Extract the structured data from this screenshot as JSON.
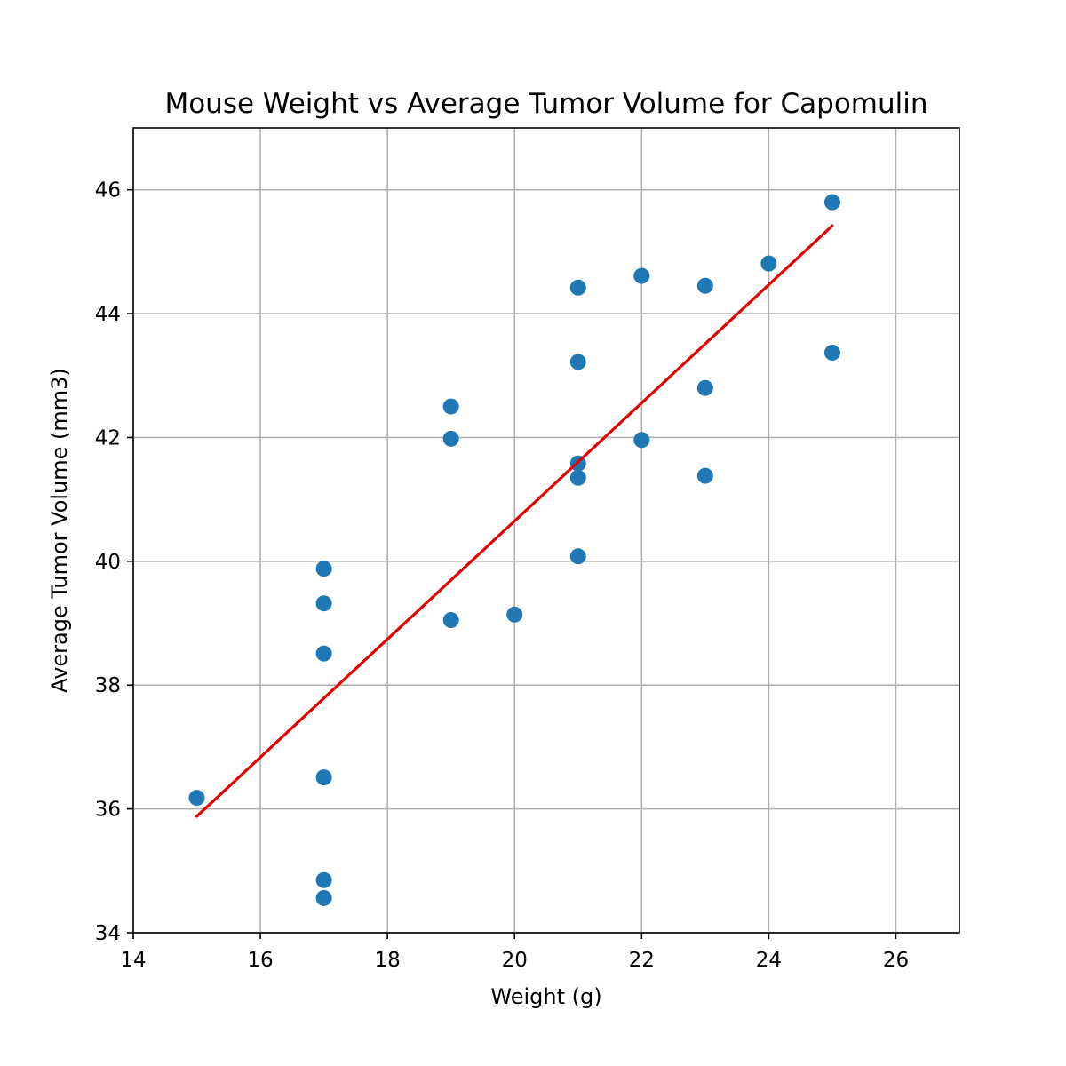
{
  "chart_data": {
    "type": "scatter",
    "title": "Mouse Weight vs Average Tumor Volume for Capomulin",
    "xlabel": "Weight (g)",
    "ylabel": "Average Tumor Volume (mm3)",
    "xlim": [
      14,
      27
    ],
    "ylim": [
      34,
      47
    ],
    "xticks": [
      14,
      16,
      18,
      20,
      22,
      24,
      26
    ],
    "yticks": [
      34,
      36,
      38,
      40,
      42,
      44,
      46
    ],
    "grid": true,
    "legend": "none",
    "point_color": "#1f77b4",
    "line_color": "#e00000",
    "points": [
      {
        "x": 15,
        "y": 36.18
      },
      {
        "x": 17,
        "y": 39.88
      },
      {
        "x": 17,
        "y": 39.32
      },
      {
        "x": 17,
        "y": 38.51
      },
      {
        "x": 17,
        "y": 36.51
      },
      {
        "x": 17,
        "y": 34.85
      },
      {
        "x": 17,
        "y": 34.56
      },
      {
        "x": 19,
        "y": 42.5
      },
      {
        "x": 19,
        "y": 41.98
      },
      {
        "x": 19,
        "y": 39.05
      },
      {
        "x": 20,
        "y": 39.14
      },
      {
        "x": 21,
        "y": 44.42
      },
      {
        "x": 21,
        "y": 43.22
      },
      {
        "x": 21,
        "y": 41.58
      },
      {
        "x": 21,
        "y": 41.35
      },
      {
        "x": 21,
        "y": 40.08
      },
      {
        "x": 22,
        "y": 44.61
      },
      {
        "x": 22,
        "y": 41.96
      },
      {
        "x": 23,
        "y": 44.45
      },
      {
        "x": 23,
        "y": 42.8
      },
      {
        "x": 23,
        "y": 41.38
      },
      {
        "x": 24,
        "y": 44.81
      },
      {
        "x": 25,
        "y": 45.8
      },
      {
        "x": 25,
        "y": 43.37
      }
    ],
    "regression": {
      "x": [
        15,
        25
      ],
      "y": [
        35.88,
        45.42
      ]
    }
  }
}
